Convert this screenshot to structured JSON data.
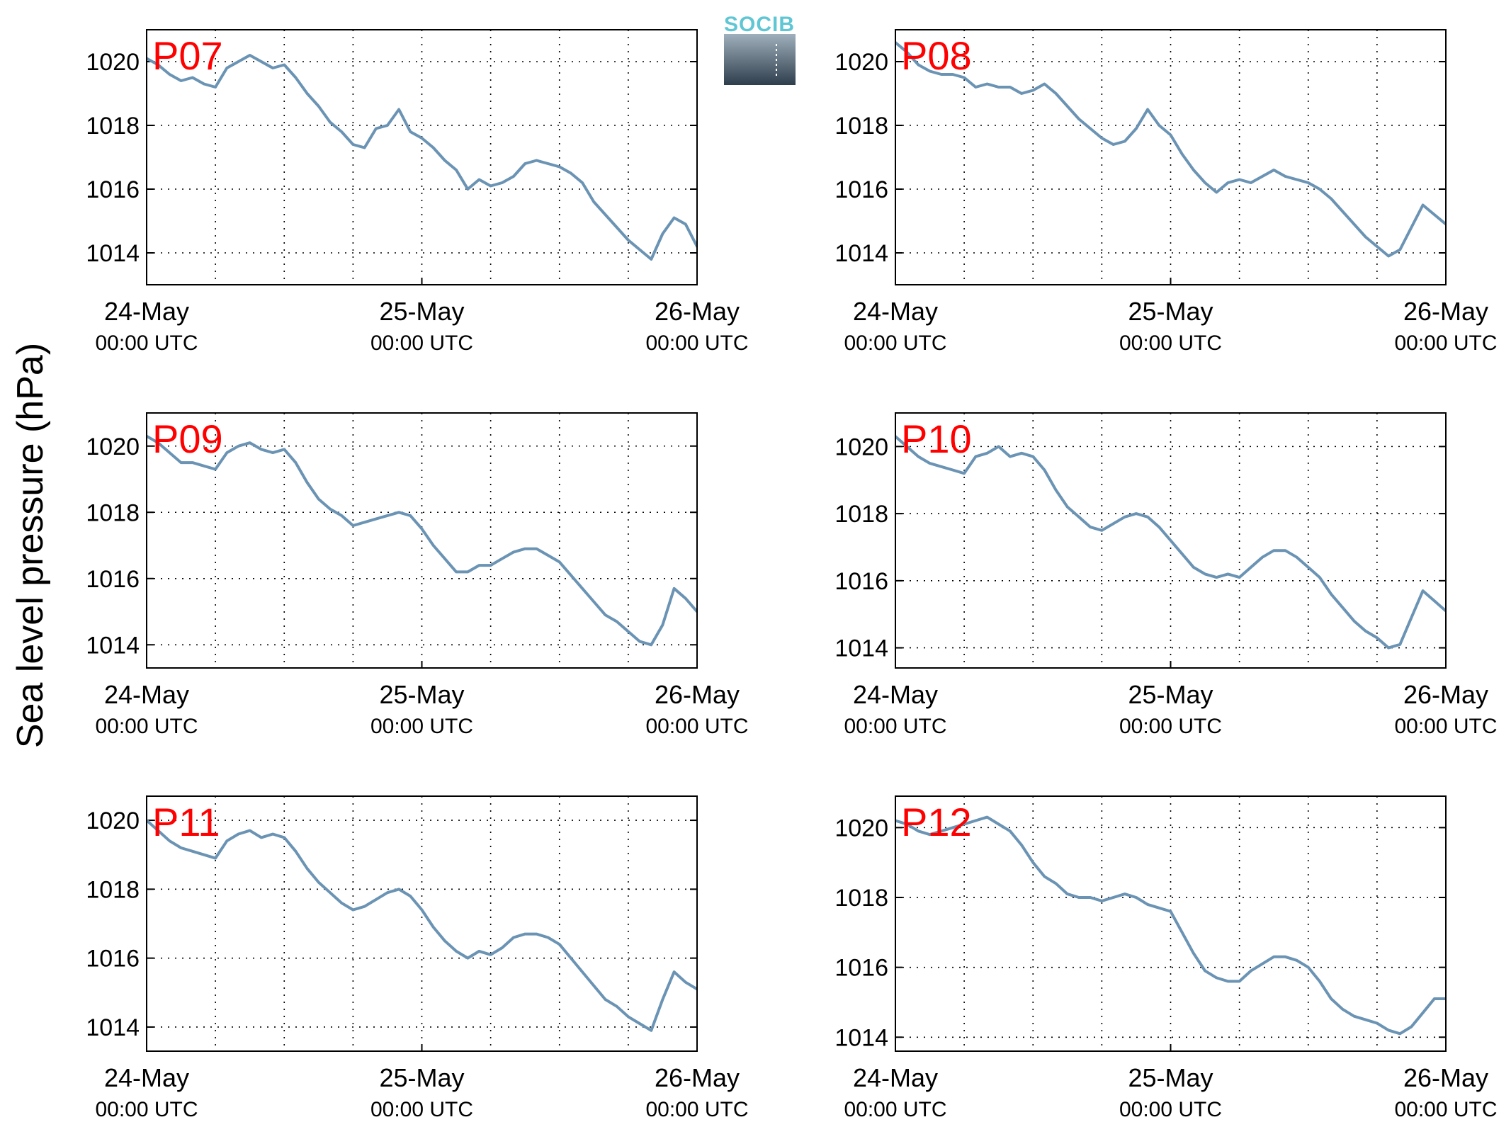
{
  "figure": {
    "ylabel": "Sea level pressure (hPa)",
    "logo_text": "SOCIB"
  },
  "colors": {
    "series": "#6a93b4",
    "panel_label": "#ff0000"
  },
  "chart_data": [
    {
      "type": "line",
      "panel": "P07",
      "label": "P07",
      "ylim": [
        1013,
        1021
      ],
      "yticks": [
        1014,
        1016,
        1018,
        1020
      ],
      "xlim": [
        0,
        48
      ],
      "xticks": [
        {
          "x": 0,
          "date": "24-May",
          "time": "00:00 UTC"
        },
        {
          "x": 24,
          "date": "25-May",
          "time": "00:00 UTC"
        },
        {
          "x": 48,
          "date": "26-May",
          "time": "00:00 UTC"
        }
      ],
      "xgrid": [
        6,
        12,
        18,
        24,
        30,
        36,
        42
      ],
      "grid": true,
      "x": [
        0,
        1,
        2,
        3,
        4,
        5,
        6,
        7,
        8,
        9,
        10,
        11,
        12,
        13,
        14,
        15,
        16,
        17,
        18,
        19,
        20,
        21,
        22,
        23,
        24,
        25,
        26,
        27,
        28,
        29,
        30,
        31,
        32,
        33,
        34,
        35,
        36,
        37,
        38,
        39,
        40,
        41,
        42,
        43,
        44,
        45,
        46,
        47,
        48
      ],
      "values": [
        1020.1,
        1019.9,
        1019.6,
        1019.4,
        1019.5,
        1019.3,
        1019.2,
        1019.8,
        1020.0,
        1020.2,
        1020.0,
        1019.8,
        1019.9,
        1019.5,
        1019.0,
        1018.6,
        1018.1,
        1017.8,
        1017.4,
        1017.3,
        1017.9,
        1018.0,
        1018.5,
        1017.8,
        1017.6,
        1017.3,
        1016.9,
        1016.6,
        1016.0,
        1016.3,
        1016.1,
        1016.2,
        1016.4,
        1016.8,
        1016.9,
        1016.8,
        1016.7,
        1016.5,
        1016.2,
        1015.6,
        1015.2,
        1014.8,
        1014.4,
        1014.1,
        1013.8,
        1014.6,
        1015.1,
        1014.9,
        1014.2
      ]
    },
    {
      "type": "line",
      "panel": "P08",
      "label": "P08",
      "ylim": [
        1013,
        1021
      ],
      "yticks": [
        1014,
        1016,
        1018,
        1020
      ],
      "xlim": [
        0,
        48
      ],
      "xticks": [
        {
          "x": 0,
          "date": "24-May",
          "time": "00:00 UTC"
        },
        {
          "x": 24,
          "date": "25-May",
          "time": "00:00 UTC"
        },
        {
          "x": 48,
          "date": "26-May",
          "time": "00:00 UTC"
        }
      ],
      "xgrid": [
        6,
        12,
        18,
        24,
        30,
        36,
        42
      ],
      "grid": true,
      "x": [
        0,
        1,
        2,
        3,
        4,
        5,
        6,
        7,
        8,
        9,
        10,
        11,
        12,
        13,
        14,
        15,
        16,
        17,
        18,
        19,
        20,
        21,
        22,
        23,
        24,
        25,
        26,
        27,
        28,
        29,
        30,
        31,
        32,
        33,
        34,
        35,
        36,
        37,
        38,
        39,
        40,
        41,
        42,
        43,
        44,
        45,
        46,
        47,
        48
      ],
      "values": [
        1020.6,
        1020.3,
        1019.9,
        1019.7,
        1019.6,
        1019.6,
        1019.5,
        1019.2,
        1019.3,
        1019.2,
        1019.2,
        1019.0,
        1019.1,
        1019.3,
        1019.0,
        1018.6,
        1018.2,
        1017.9,
        1017.6,
        1017.4,
        1017.5,
        1017.9,
        1018.5,
        1018.0,
        1017.7,
        1017.1,
        1016.6,
        1016.2,
        1015.9,
        1016.2,
        1016.3,
        1016.2,
        1016.4,
        1016.6,
        1016.4,
        1016.3,
        1016.2,
        1016.0,
        1015.7,
        1015.3,
        1014.9,
        1014.5,
        1014.2,
        1013.9,
        1014.1,
        1014.8,
        1015.5,
        1015.2,
        1014.9
      ]
    },
    {
      "type": "line",
      "panel": "P09",
      "label": "P09",
      "ylim": [
        1013.3,
        1021
      ],
      "yticks": [
        1014,
        1016,
        1018,
        1020
      ],
      "xlim": [
        0,
        48
      ],
      "xticks": [
        {
          "x": 0,
          "date": "24-May",
          "time": "00:00 UTC"
        },
        {
          "x": 24,
          "date": "25-May",
          "time": "00:00 UTC"
        },
        {
          "x": 48,
          "date": "26-May",
          "time": "00:00 UTC"
        }
      ],
      "xgrid": [
        6,
        12,
        18,
        24,
        30,
        36,
        42
      ],
      "grid": true,
      "x": [
        0,
        1,
        2,
        3,
        4,
        5,
        6,
        7,
        8,
        9,
        10,
        11,
        12,
        13,
        14,
        15,
        16,
        17,
        18,
        19,
        20,
        21,
        22,
        23,
        24,
        25,
        26,
        27,
        28,
        29,
        30,
        31,
        32,
        33,
        34,
        35,
        36,
        37,
        38,
        39,
        40,
        41,
        42,
        43,
        44,
        45,
        46,
        47,
        48
      ],
      "values": [
        1020.3,
        1020.1,
        1019.8,
        1019.5,
        1019.5,
        1019.4,
        1019.3,
        1019.8,
        1020.0,
        1020.1,
        1019.9,
        1019.8,
        1019.9,
        1019.5,
        1018.9,
        1018.4,
        1018.1,
        1017.9,
        1017.6,
        1017.7,
        1017.8,
        1017.9,
        1018.0,
        1017.9,
        1017.5,
        1017.0,
        1016.6,
        1016.2,
        1016.2,
        1016.4,
        1016.4,
        1016.6,
        1016.8,
        1016.9,
        1016.9,
        1016.7,
        1016.5,
        1016.1,
        1015.7,
        1015.3,
        1014.9,
        1014.7,
        1014.4,
        1014.1,
        1014.0,
        1014.6,
        1015.7,
        1015.4,
        1015.0
      ]
    },
    {
      "type": "line",
      "panel": "P10",
      "label": "P10",
      "ylim": [
        1013.4,
        1021
      ],
      "yticks": [
        1014,
        1016,
        1018,
        1020
      ],
      "xlim": [
        0,
        48
      ],
      "xticks": [
        {
          "x": 0,
          "date": "24-May",
          "time": "00:00 UTC"
        },
        {
          "x": 24,
          "date": "25-May",
          "time": "00:00 UTC"
        },
        {
          "x": 48,
          "date": "26-May",
          "time": "00:00 UTC"
        }
      ],
      "xgrid": [
        6,
        12,
        18,
        24,
        30,
        36,
        42
      ],
      "grid": true,
      "x": [
        0,
        1,
        2,
        3,
        4,
        5,
        6,
        7,
        8,
        9,
        10,
        11,
        12,
        13,
        14,
        15,
        16,
        17,
        18,
        19,
        20,
        21,
        22,
        23,
        24,
        25,
        26,
        27,
        28,
        29,
        30,
        31,
        32,
        33,
        34,
        35,
        36,
        37,
        38,
        39,
        40,
        41,
        42,
        43,
        44,
        45,
        46,
        47,
        48
      ],
      "values": [
        1020.3,
        1020.0,
        1019.7,
        1019.5,
        1019.4,
        1019.3,
        1019.2,
        1019.7,
        1019.8,
        1020.0,
        1019.7,
        1019.8,
        1019.7,
        1019.3,
        1018.7,
        1018.2,
        1017.9,
        1017.6,
        1017.5,
        1017.7,
        1017.9,
        1018.0,
        1017.9,
        1017.6,
        1017.2,
        1016.8,
        1016.4,
        1016.2,
        1016.1,
        1016.2,
        1016.1,
        1016.4,
        1016.7,
        1016.9,
        1016.9,
        1016.7,
        1016.4,
        1016.1,
        1015.6,
        1015.2,
        1014.8,
        1014.5,
        1014.3,
        1014.0,
        1014.1,
        1014.9,
        1015.7,
        1015.4,
        1015.1
      ]
    },
    {
      "type": "line",
      "panel": "P11",
      "label": "P11",
      "ylim": [
        1013.3,
        1020.7
      ],
      "yticks": [
        1014,
        1016,
        1018,
        1020
      ],
      "xlim": [
        0,
        48
      ],
      "xticks": [
        {
          "x": 0,
          "date": "24-May",
          "time": "00:00 UTC"
        },
        {
          "x": 24,
          "date": "25-May",
          "time": "00:00 UTC"
        },
        {
          "x": 48,
          "date": "26-May",
          "time": "00:00 UTC"
        }
      ],
      "xgrid": [
        6,
        12,
        18,
        24,
        30,
        36,
        42
      ],
      "grid": true,
      "x": [
        0,
        1,
        2,
        3,
        4,
        5,
        6,
        7,
        8,
        9,
        10,
        11,
        12,
        13,
        14,
        15,
        16,
        17,
        18,
        19,
        20,
        21,
        22,
        23,
        24,
        25,
        26,
        27,
        28,
        29,
        30,
        31,
        32,
        33,
        34,
        35,
        36,
        37,
        38,
        39,
        40,
        41,
        42,
        43,
        44,
        45,
        46,
        47,
        48
      ],
      "values": [
        1020.0,
        1019.7,
        1019.4,
        1019.2,
        1019.1,
        1019.0,
        1018.9,
        1019.4,
        1019.6,
        1019.7,
        1019.5,
        1019.6,
        1019.5,
        1019.1,
        1018.6,
        1018.2,
        1017.9,
        1017.6,
        1017.4,
        1017.5,
        1017.7,
        1017.9,
        1018.0,
        1017.8,
        1017.4,
        1016.9,
        1016.5,
        1016.2,
        1016.0,
        1016.2,
        1016.1,
        1016.3,
        1016.6,
        1016.7,
        1016.7,
        1016.6,
        1016.4,
        1016.0,
        1015.6,
        1015.2,
        1014.8,
        1014.6,
        1014.3,
        1014.1,
        1013.9,
        1014.8,
        1015.6,
        1015.3,
        1015.1
      ]
    },
    {
      "type": "line",
      "panel": "P12",
      "label": "P12",
      "ylim": [
        1013.6,
        1020.9
      ],
      "yticks": [
        1014,
        1016,
        1018,
        1020
      ],
      "xlim": [
        0,
        48
      ],
      "xticks": [
        {
          "x": 0,
          "date": "24-May",
          "time": "00:00 UTC"
        },
        {
          "x": 24,
          "date": "25-May",
          "time": "00:00 UTC"
        },
        {
          "x": 48,
          "date": "26-May",
          "time": "00:00 UTC"
        }
      ],
      "xgrid": [
        6,
        12,
        18,
        24,
        30,
        36,
        42
      ],
      "grid": true,
      "x": [
        0,
        1,
        2,
        3,
        4,
        5,
        6,
        7,
        8,
        9,
        10,
        11,
        12,
        13,
        14,
        15,
        16,
        17,
        18,
        19,
        20,
        21,
        22,
        23,
        24,
        25,
        26,
        27,
        28,
        29,
        30,
        31,
        32,
        33,
        34,
        35,
        36,
        37,
        38,
        39,
        40,
        41,
        42,
        43,
        44,
        45,
        46,
        47,
        48
      ],
      "values": [
        1020.2,
        1020.1,
        1019.9,
        1019.8,
        1019.9,
        1020.0,
        1020.1,
        1020.2,
        1020.3,
        1020.1,
        1019.9,
        1019.5,
        1019.0,
        1018.6,
        1018.4,
        1018.1,
        1018.0,
        1018.0,
        1017.9,
        1018.0,
        1018.1,
        1018.0,
        1017.8,
        1017.7,
        1017.6,
        1017.0,
        1016.4,
        1015.9,
        1015.7,
        1015.6,
        1015.6,
        1015.9,
        1016.1,
        1016.3,
        1016.3,
        1016.2,
        1016.0,
        1015.6,
        1015.1,
        1014.8,
        1014.6,
        1014.5,
        1014.4,
        1014.2,
        1014.1,
        1014.3,
        1014.7,
        1015.1,
        1015.1
      ]
    }
  ]
}
